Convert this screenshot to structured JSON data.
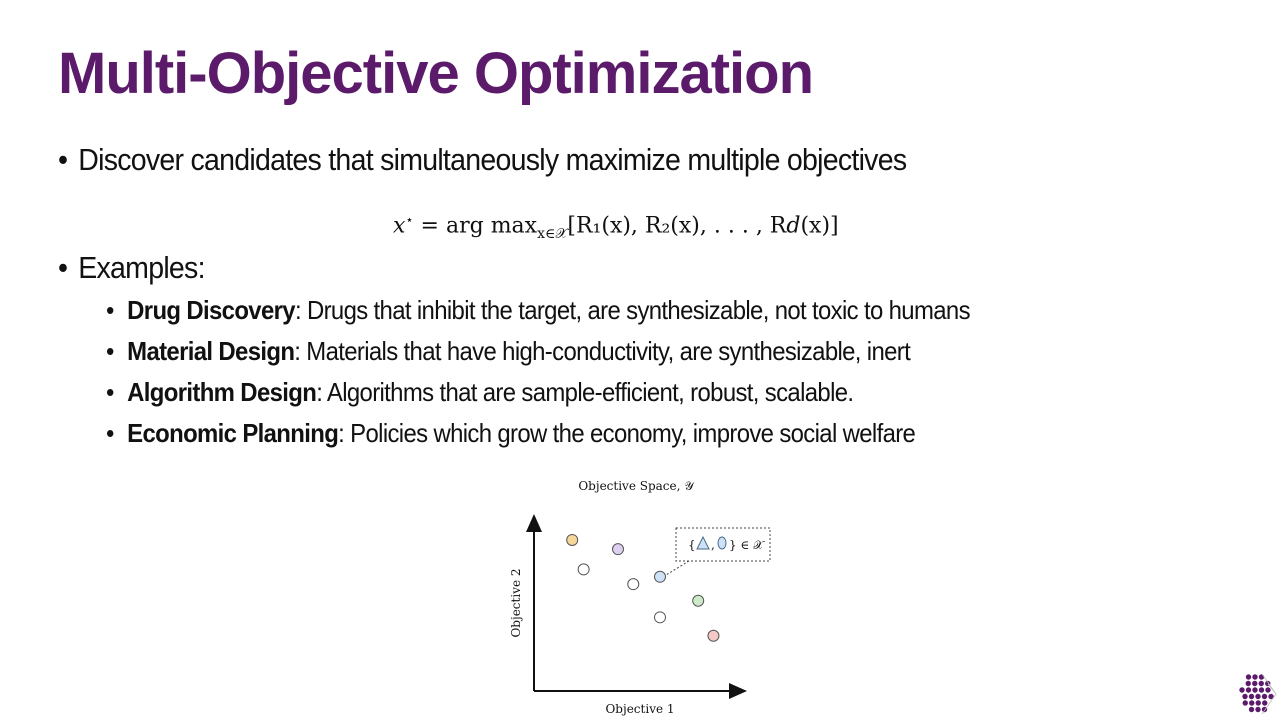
{
  "title": "Multi-Objective Optimization",
  "bullets": [
    {
      "text": "Discover candidates that simultaneously maximize multiple objectives"
    },
    {
      "text": "Examples:"
    }
  ],
  "formula": {
    "lhs": "x",
    "star": "⋆",
    "eq": " = arg max",
    "sub": "x∈𝒳",
    "rhs": "[R₁(x), R₂(x), . . . , R𝑑(x)]"
  },
  "examples": [
    {
      "term": "Drug Discovery",
      "desc": ": Drugs that inhibit the target, are synthesizable, not toxic to humans"
    },
    {
      "term": "Material Design",
      "desc": ": Materials that have high-conductivity, are synthesizable, inert"
    },
    {
      "term": "Algorithm Design",
      "desc": ": Algorithms that are sample-efficient, robust, scalable."
    },
    {
      "term": "Economic Planning",
      "desc": ": Policies which grow the economy, improve social welfare"
    }
  ],
  "chart_data": {
    "type": "scatter",
    "title": "Objective Space, 𝒴",
    "xlabel": "Objective 1",
    "ylabel": "Objective 2",
    "callout": {
      "prefix": "{",
      "sep": ",",
      "suffix": "} ∈ 𝒳"
    },
    "points": [
      {
        "x": 1.0,
        "y": 8.2,
        "color": "#f6d79a"
      },
      {
        "x": 2.2,
        "y": 7.7,
        "color": "#dcd0ee"
      },
      {
        "x": 1.3,
        "y": 6.6,
        "color": "#ffffff"
      },
      {
        "x": 3.3,
        "y": 6.2,
        "color": "#cde2f7"
      },
      {
        "x": 2.6,
        "y": 5.8,
        "color": "#ffffff"
      },
      {
        "x": 4.3,
        "y": 4.9,
        "color": "#cdeac8"
      },
      {
        "x": 3.3,
        "y": 4.0,
        "color": "#ffffff"
      },
      {
        "x": 4.7,
        "y": 3.0,
        "color": "#f5c9c5"
      }
    ],
    "highlight_index": 3,
    "axes": "no ticks",
    "colors": {
      "title_purple": "#5c1a6b"
    }
  },
  "logo": {
    "color": "#5c1a6b"
  }
}
